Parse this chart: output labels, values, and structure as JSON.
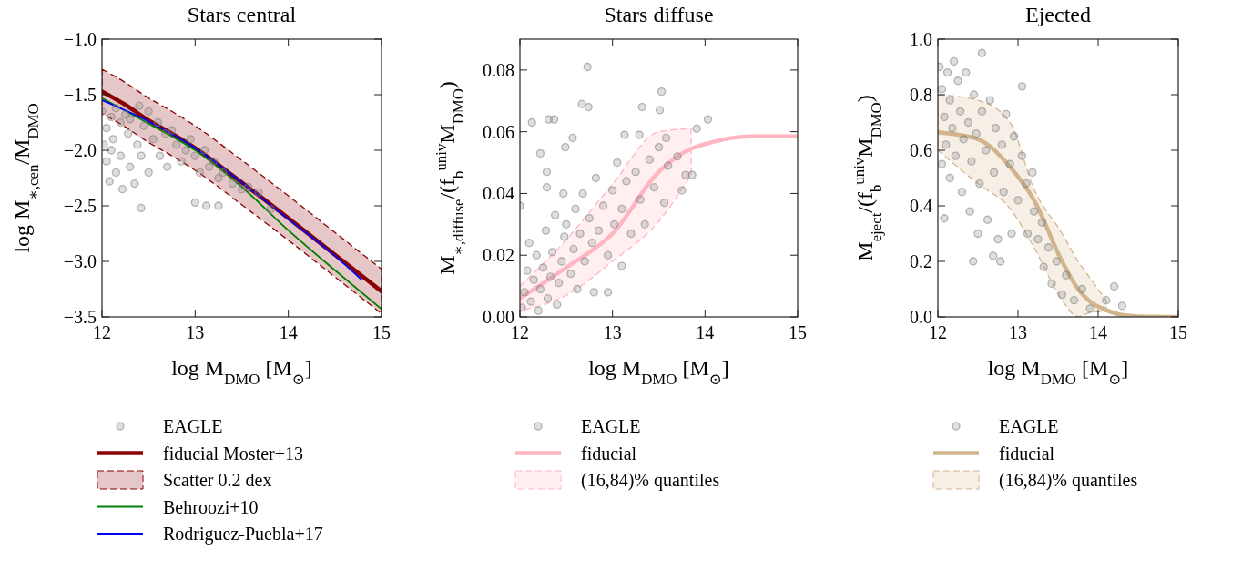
{
  "chart_data": [
    {
      "type": "scatter",
      "title": "Stars central",
      "xlabel": "log M$_{DMO}$ [M$_{⊙}$]",
      "ylabel": "log M$_{∗,cen}$/M$_{DMO}$",
      "xlim": [
        12,
        15
      ],
      "xticks": [
        12,
        13,
        14,
        15
      ],
      "ylim": [
        -3.5,
        -1.0
      ],
      "yticks": [
        {
          "value": -3.5,
          "label": "−3.5"
        },
        {
          "value": -3.0,
          "label": "−3.0"
        },
        {
          "value": -2.5,
          "label": "−2.5"
        },
        {
          "value": -2.0,
          "label": "−2.0"
        },
        {
          "value": -1.5,
          "label": "−1.5"
        },
        {
          "value": -1.0,
          "label": "−1.0"
        }
      ],
      "legend": "bottom",
      "annotations": [
        "Scatter 0.2 dex"
      ],
      "series": [
        {
          "name": "EAGLE",
          "type": "scatter",
          "marker": "circle",
          "color": "#808080",
          "x": [
            12.0,
            12.02,
            12.05,
            12.05,
            12.08,
            12.1,
            12.1,
            12.12,
            12.15,
            12.15,
            12.2,
            12.2,
            12.22,
            12.25,
            12.28,
            12.3,
            12.3,
            12.35,
            12.38,
            12.4,
            12.42,
            12.45,
            12.5,
            12.5,
            12.55,
            12.6,
            12.62,
            12.68,
            12.7,
            12.75,
            12.8,
            12.85,
            12.9,
            12.95,
            13.0,
            13.05,
            13.1,
            13.15,
            13.2,
            13.25,
            13.3,
            13.4,
            13.5,
            13.57,
            13.68,
            13.81,
            13.0,
            12.42,
            13.12,
            13.25
          ],
          "values": [
            -1.65,
            -1.95,
            -2.1,
            -1.8,
            -2.28,
            -1.7,
            -2.0,
            -1.9,
            -2.2,
            -1.62,
            -1.75,
            -2.05,
            -2.35,
            -1.68,
            -1.85,
            -2.15,
            -1.72,
            -2.3,
            -1.95,
            -1.6,
            -2.05,
            -1.78,
            -1.65,
            -2.2,
            -1.9,
            -1.75,
            -2.05,
            -1.85,
            -2.15,
            -1.82,
            -1.95,
            -2.1,
            -2.0,
            -1.9,
            -2.05,
            -2.2,
            -2.0,
            -2.15,
            -2.1,
            -2.25,
            -2.2,
            -2.3,
            -2.35,
            -2.33,
            -2.38,
            -2.53,
            -2.47,
            -2.52,
            -2.5,
            -2.5
          ]
        },
        {
          "name": "fiducial Moster+13",
          "type": "line",
          "color": "#8b0000",
          "x": [
            12,
            12.25,
            12.5,
            12.75,
            13,
            13.5,
            14,
            14.5,
            15
          ],
          "values": [
            -1.47,
            -1.59,
            -1.73,
            -1.85,
            -1.98,
            -2.29,
            -2.61,
            -2.94,
            -3.27
          ],
          "lower": [
            -1.67,
            -1.79,
            -1.93,
            -2.05,
            -2.18,
            -2.49,
            -2.81,
            -3.14,
            -3.47
          ],
          "upper": [
            -1.27,
            -1.39,
            -1.53,
            -1.65,
            -1.78,
            -2.09,
            -2.41,
            -2.74,
            -3.07
          ]
        },
        {
          "name": "Behroozi+10",
          "type": "line",
          "color": "#008000",
          "x": [
            12,
            12.5,
            13,
            13.5,
            14,
            14.5,
            15
          ],
          "values": [
            -1.53,
            -1.76,
            -2.0,
            -2.33,
            -2.72,
            -3.08,
            -3.43
          ]
        },
        {
          "name": "Rodriguez-Puebla+17",
          "type": "line",
          "color": "#0000ff",
          "x": [
            12,
            12.5,
            13,
            13.5,
            14,
            14.5,
            14.78
          ],
          "values": [
            -1.55,
            -1.74,
            -1.98,
            -2.29,
            -2.62,
            -2.95,
            -3.16
          ]
        }
      ]
    },
    {
      "type": "scatter",
      "title": "Stars diffuse",
      "xlabel": "log M$_{DMO}$ [M$_{⊙}$]",
      "ylabel": "M$_{∗,diffuse}$/(f$_{b}$$^{univ}$M$_{DMO}$)",
      "xlim": [
        12,
        15
      ],
      "xticks": [
        12,
        13,
        14,
        15
      ],
      "ylim": [
        0,
        0.09
      ],
      "yticks": [
        {
          "value": 0,
          "label": "0.00"
        },
        {
          "value": 0.02,
          "label": "0.02"
        },
        {
          "value": 0.04,
          "label": "0.04"
        },
        {
          "value": 0.06,
          "label": "0.06"
        },
        {
          "value": 0.08,
          "label": "0.08"
        }
      ],
      "legend": "bottom",
      "annotations": [
        "(16,84)% quantiles"
      ],
      "series": [
        {
          "name": "EAGLE",
          "type": "scatter",
          "marker": "circle",
          "color": "#808080",
          "x": [
            12.73,
            12.67,
            12.74,
            13.53,
            13.32,
            13.51,
            14.03,
            12.37,
            12.13,
            12.31,
            12.22,
            12.49,
            12.57,
            12.29,
            12.29,
            12.47,
            13.13,
            13.29,
            13.58,
            13.91,
            13.79,
            13.86,
            13.56,
            13.1,
            12.95,
            12.8,
            12.02,
            12.05,
            12.08,
            12.1,
            12.12,
            12.15,
            12.18,
            12.2,
            12.22,
            12.25,
            12.28,
            12.3,
            12.33,
            12.35,
            12.38,
            12.4,
            12.42,
            12.45,
            12.48,
            12.5,
            12.55,
            12.58,
            12.6,
            12.62,
            12.65,
            12.68,
            12.7,
            12.75,
            12.78,
            12.82,
            12.85,
            12.9,
            12.95,
            13.0,
            13.02,
            13.05,
            13.1,
            13.15,
            13.2,
            13.25,
            13.3,
            13.35,
            13.4,
            13.45,
            13.5,
            13.6,
            13.7,
            13.75,
            12.0
          ],
          "values": [
            0.081,
            0.069,
            0.068,
            0.073,
            0.068,
            0.067,
            0.064,
            0.064,
            0.063,
            0.064,
            0.053,
            0.055,
            0.058,
            0.047,
            0.042,
            0.04,
            0.059,
            0.059,
            0.058,
            0.061,
            0.046,
            0.046,
            0.037,
            0.0165,
            0.008,
            0.008,
            0.003,
            0.008,
            0.015,
            0.024,
            0.005,
            0.012,
            0.02,
            0.002,
            0.009,
            0.016,
            0.028,
            0.006,
            0.013,
            0.021,
            0.033,
            0.004,
            0.011,
            0.018,
            0.026,
            0.03,
            0.014,
            0.022,
            0.035,
            0.009,
            0.027,
            0.04,
            0.018,
            0.032,
            0.024,
            0.045,
            0.028,
            0.036,
            0.02,
            0.041,
            0.03,
            0.05,
            0.035,
            0.044,
            0.027,
            0.047,
            0.038,
            0.03,
            0.051,
            0.042,
            0.055,
            0.049,
            0.052,
            0.041,
            0.036
          ]
        },
        {
          "name": "fiducial",
          "type": "line",
          "color": "#ffb6c1",
          "x": [
            12,
            12.5,
            13,
            13.5,
            13.85,
            14,
            14.5,
            15
          ],
          "values": [
            0.006,
            0.016,
            0.027,
            0.047,
            0.0545,
            0.056,
            0.0585,
            0.0585
          ],
          "lower": [
            0.002,
            0.007,
            0.018,
            0.031,
            0.046,
            null,
            null,
            null
          ],
          "upper": [
            0.01,
            0.025,
            0.043,
            0.06,
            0.061,
            null,
            null,
            null
          ]
        }
      ]
    },
    {
      "type": "scatter",
      "title": "Ejected",
      "xlabel": "log M$_{DMO}$ [M$_{⊙}$]",
      "ylabel": "M$_{eject}$/(f$_{b}$$^{univ}$M$_{DMO}$)",
      "xlim": [
        12,
        15
      ],
      "xticks": [
        12,
        13,
        14,
        15
      ],
      "ylim": [
        0,
        1
      ],
      "yticks": [
        {
          "value": 0,
          "label": "0.0"
        },
        {
          "value": 0.2,
          "label": "0.2"
        },
        {
          "value": 0.4,
          "label": "0.4"
        },
        {
          "value": 0.6,
          "label": "0.6"
        },
        {
          "value": 0.8,
          "label": "0.8"
        },
        {
          "value": 1,
          "label": "1.0"
        }
      ],
      "legend": "bottom",
      "annotations": [
        "(16,84)% quantiles"
      ],
      "series": [
        {
          "name": "EAGLE",
          "type": "scatter",
          "marker": "circle",
          "color": "#808080",
          "x": [
            12.55,
            13.05,
            12.44,
            12.69,
            12.78,
            14.2,
            14.3,
            14.1,
            12.08,
            12.02,
            12.05,
            12.05,
            12.08,
            12.1,
            12.12,
            12.15,
            12.15,
            12.18,
            12.2,
            12.22,
            12.25,
            12.28,
            12.3,
            12.32,
            12.35,
            12.38,
            12.4,
            12.42,
            12.45,
            12.48,
            12.5,
            12.52,
            12.55,
            12.6,
            12.62,
            12.65,
            12.7,
            12.72,
            12.75,
            12.8,
            12.82,
            12.85,
            12.9,
            12.92,
            12.95,
            13.0,
            13.05,
            13.1,
            13.12,
            13.18,
            13.2,
            13.25,
            13.3,
            13.32,
            13.38,
            13.42,
            13.48,
            13.55,
            13.6,
            13.7,
            13.8,
            13.9
          ],
          "values": [
            0.95,
            0.83,
            0.2,
            0.22,
            0.2,
            0.11,
            0.04,
            0.06,
            0.355,
            0.9,
            0.82,
            0.55,
            0.72,
            0.62,
            0.88,
            0.78,
            0.5,
            0.68,
            0.92,
            0.58,
            0.85,
            0.74,
            0.45,
            0.64,
            0.88,
            0.7,
            0.38,
            0.56,
            0.8,
            0.66,
            0.3,
            0.48,
            0.74,
            0.6,
            0.35,
            0.78,
            0.52,
            0.68,
            0.28,
            0.62,
            0.45,
            0.73,
            0.55,
            0.3,
            0.65,
            0.42,
            0.58,
            0.48,
            0.3,
            0.52,
            0.38,
            0.28,
            0.34,
            0.18,
            0.25,
            0.12,
            0.2,
            0.08,
            0.15,
            0.06,
            0.1,
            0.03
          ]
        },
        {
          "name": "fiducial",
          "type": "line",
          "color": "#d2b48c",
          "x": [
            12,
            12.5,
            12.9,
            13.2,
            13.55,
            13.75,
            13.9,
            14.1,
            14.25,
            14.5,
            15
          ],
          "values": [
            0.665,
            0.64,
            0.54,
            0.42,
            0.2,
            0.1,
            0.055,
            0.025,
            0.01,
            0.002,
            0.0
          ],
          "lower": [
            0.6,
            0.48,
            0.39,
            0.25,
            0.06,
            0.0,
            0.016,
            0.02,
            null,
            null,
            null
          ],
          "upper": [
            0.8,
            0.78,
            0.7,
            0.46,
            0.3,
            0.2,
            0.14,
            0.06,
            null,
            null,
            null
          ]
        }
      ]
    }
  ]
}
